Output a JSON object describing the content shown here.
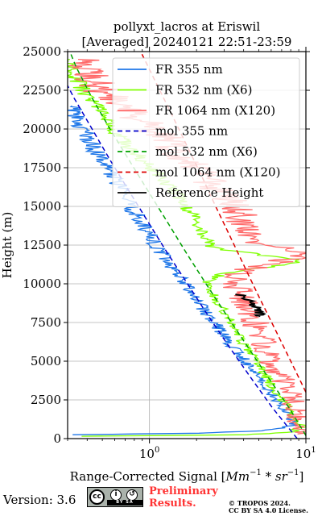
{
  "chart_data": {
    "type": "line",
    "title_line1": "pollyxt_lacros at Eriswil",
    "title_line2": "[Averaged] 20240121 22:51-23:59",
    "xlabel_main": "Range-Corrected Signal [",
    "xlabel_unit1": "Mm",
    "xlabel_exp1": "−1",
    "xlabel_mid": " * ",
    "xlabel_unit2": "sr",
    "xlabel_exp2": "−1",
    "xlabel_end": "]",
    "ylabel": "Height (m)",
    "xscale": "log",
    "xlim": [
      0.3,
      10
    ],
    "ylim": [
      0,
      25000
    ],
    "grid": true,
    "legend_position": "top-right",
    "x_ticks": [
      {
        "value": 1,
        "base": "10",
        "exp": "0"
      },
      {
        "value": 10,
        "base": "10",
        "exp": "1"
      }
    ],
    "y_ticks": [
      {
        "value": 0,
        "label": "0"
      },
      {
        "value": 2500,
        "label": "2500"
      },
      {
        "value": 5000,
        "label": "5000"
      },
      {
        "value": 7500,
        "label": "7500"
      },
      {
        "value": 10000,
        "label": "10000"
      },
      {
        "value": 12500,
        "label": "12500"
      },
      {
        "value": 15000,
        "label": "15000"
      },
      {
        "value": 17500,
        "label": "17500"
      },
      {
        "value": 20000,
        "label": "20000"
      },
      {
        "value": 22500,
        "label": "22500"
      },
      {
        "value": 25000,
        "label": "25000"
      }
    ],
    "series": [
      {
        "name": "FR 355 nm",
        "color": "#1f77e8",
        "style": "solid",
        "noise": 0.08,
        "points": [
          [
            0.35,
            250
          ],
          [
            2,
            350
          ],
          [
            5,
            500
          ],
          [
            7,
            700
          ],
          [
            8.5,
            900
          ],
          [
            7.6,
            1500
          ],
          [
            6.5,
            2500
          ],
          [
            5.3,
            3500
          ],
          [
            4.5,
            4500
          ],
          [
            3.7,
            5500
          ],
          [
            3.1,
            6500
          ],
          [
            2.6,
            7500
          ],
          [
            2.15,
            8500
          ],
          [
            1.8,
            9500
          ],
          [
            1.55,
            10500
          ],
          [
            1.3,
            11500
          ],
          [
            1.1,
            12500
          ],
          [
            0.95,
            13500
          ],
          [
            0.82,
            14500
          ],
          [
            0.7,
            15500
          ],
          [
            0.62,
            16500
          ],
          [
            0.53,
            17500
          ],
          [
            0.46,
            18500
          ],
          [
            0.4,
            19500
          ],
          [
            0.35,
            20500
          ],
          [
            0.32,
            21500
          ]
        ]
      },
      {
        "name": "FR 532 nm (X6)",
        "color": "#7fff00",
        "style": "solid",
        "noise": 0.07,
        "points": [
          [
            0.35,
            150
          ],
          [
            4,
            250
          ],
          [
            8,
            400
          ],
          [
            9.5,
            800
          ],
          [
            8.2,
            1500
          ],
          [
            7.1,
            2500
          ],
          [
            6,
            3500
          ],
          [
            5.2,
            4500
          ],
          [
            4.4,
            5500
          ],
          [
            3.8,
            6500
          ],
          [
            3.3,
            7500
          ],
          [
            2.9,
            8500
          ],
          [
            2.5,
            9500
          ],
          [
            2.3,
            10000
          ],
          [
            2.5,
            10400
          ],
          [
            3.4,
            10800
          ],
          [
            6,
            11100
          ],
          [
            9.5,
            11500
          ],
          [
            3,
            12200
          ],
          [
            2.4,
            12500
          ],
          [
            2.15,
            13500
          ],
          [
            1.85,
            14500
          ],
          [
            1.6,
            15500
          ],
          [
            1.3,
            16500
          ],
          [
            1,
            17500
          ],
          [
            0.8,
            18500
          ],
          [
            0.65,
            19500
          ],
          [
            0.55,
            20500
          ],
          [
            0.45,
            21500
          ],
          [
            0.38,
            22500
          ],
          [
            0.33,
            23500
          ],
          [
            0.31,
            24500
          ]
        ]
      },
      {
        "name": "FR 1064 nm (X120)",
        "color": "#ff6a6a",
        "style": "solid",
        "noise": 0.16,
        "points": [
          [
            9.5,
            300
          ],
          [
            9,
            1000
          ],
          [
            8.5,
            2000
          ],
          [
            8,
            3000
          ],
          [
            7,
            4000
          ],
          [
            6,
            5000
          ],
          [
            5.5,
            6000
          ],
          [
            5,
            7000
          ],
          [
            4.5,
            8000
          ],
          [
            4,
            9000
          ],
          [
            3.5,
            10000
          ],
          [
            3.8,
            10800
          ],
          [
            6,
            11300
          ],
          [
            9.5,
            11800
          ],
          [
            9,
            12200
          ],
          [
            4.5,
            12500
          ],
          [
            4.2,
            13500
          ],
          [
            3.8,
            14500
          ],
          [
            3.2,
            15500
          ],
          [
            2.5,
            16500
          ],
          [
            2,
            17500
          ],
          [
            1.5,
            18500
          ],
          [
            1.2,
            19500
          ],
          [
            0.9,
            20500
          ],
          [
            0.7,
            21500
          ],
          [
            0.5,
            22500
          ],
          [
            0.4,
            23500
          ],
          [
            0.35,
            24500
          ]
        ]
      },
      {
        "name": "mol 355 nm",
        "color": "#0000cc",
        "style": "dashed",
        "points": [
          [
            8.8,
            0
          ],
          [
            6.1,
            2000
          ],
          [
            4.4,
            4000
          ],
          [
            3.2,
            6000
          ],
          [
            2.35,
            8000
          ],
          [
            1.75,
            10000
          ],
          [
            1.3,
            12000
          ],
          [
            0.98,
            14000
          ],
          [
            0.74,
            16000
          ],
          [
            0.56,
            18000
          ],
          [
            0.43,
            20000
          ],
          [
            0.33,
            22000
          ],
          [
            0.3,
            22800
          ]
        ]
      },
      {
        "name": "mol 532 nm (X6)",
        "color": "#00a000",
        "style": "dashed",
        "points": [
          [
            10,
            200
          ],
          [
            7.8,
            2000
          ],
          [
            5.7,
            4000
          ],
          [
            4.2,
            6000
          ],
          [
            3.1,
            8000
          ],
          [
            2.3,
            10000
          ],
          [
            1.72,
            12000
          ],
          [
            1.3,
            14000
          ],
          [
            0.98,
            16000
          ],
          [
            0.74,
            18000
          ],
          [
            0.56,
            20000
          ],
          [
            0.43,
            22000
          ],
          [
            0.34,
            24000
          ],
          [
            0.31,
            25000
          ]
        ]
      },
      {
        "name": "mol 1064 nm (X120)",
        "color": "#dd0000",
        "style": "dashed",
        "points": [
          [
            10,
            3000
          ],
          [
            8,
            5000
          ],
          [
            6.4,
            7000
          ],
          [
            5.1,
            9000
          ],
          [
            4.1,
            11000
          ],
          [
            3.3,
            13000
          ],
          [
            2.65,
            15000
          ],
          [
            2.15,
            17000
          ],
          [
            1.72,
            19000
          ],
          [
            1.38,
            21000
          ],
          [
            1.1,
            23000
          ],
          [
            0.88,
            25000
          ]
        ]
      },
      {
        "name": "Reference Height",
        "color": "#000000",
        "style": "solid",
        "noise": 0.06,
        "points": [
          [
            3.8,
            9300
          ],
          [
            4.1,
            9000
          ],
          [
            4.5,
            8700
          ],
          [
            4.8,
            8400
          ],
          [
            5.0,
            8200
          ],
          [
            5.2,
            8000
          ],
          [
            5.0,
            7900
          ]
        ]
      }
    ]
  },
  "footer": {
    "version": "Version: 3.6",
    "cc_text": "cc",
    "cc_by": "BY",
    "cc_sa": "SA",
    "prelim_line1": "Preliminary",
    "prelim_line2": "Results.",
    "copyright_line1": "© TROPOS 2024.",
    "copyright_line2": "CC BY SA 4.0 License."
  }
}
